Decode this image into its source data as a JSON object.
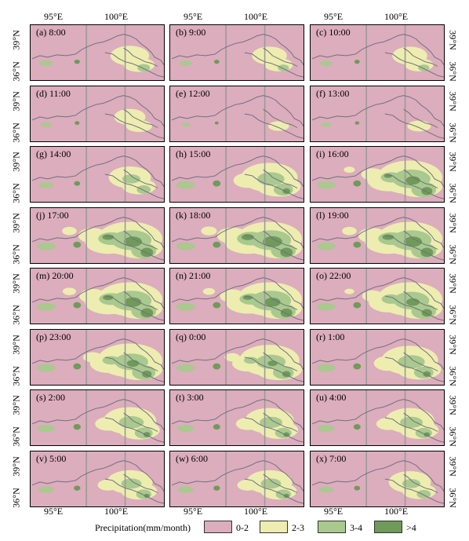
{
  "axes": {
    "top_lon": [
      "95°E",
      "100°E"
    ],
    "bottom_lon": [
      "95°E",
      "100°E"
    ],
    "lat": [
      "39°N",
      "36°N"
    ]
  },
  "panels": [
    {
      "label": "(a) 8:00",
      "intensity": 0.25
    },
    {
      "label": "(b) 9:00",
      "intensity": 0.2
    },
    {
      "label": "(c) 10:00",
      "intensity": 0.2
    },
    {
      "label": "(d) 11:00",
      "intensity": 0.15
    },
    {
      "label": "(e) 12:00",
      "intensity": 0.05
    },
    {
      "label": "(f) 13:00",
      "intensity": 0.1
    },
    {
      "label": "(g) 14:00",
      "intensity": 0.3
    },
    {
      "label": "(h) 15:00",
      "intensity": 0.5
    },
    {
      "label": "(i) 16:00",
      "intensity": 0.75
    },
    {
      "label": "(j) 17:00",
      "intensity": 0.9
    },
    {
      "label": "(k) 18:00",
      "intensity": 0.95
    },
    {
      "label": "(l) 19:00",
      "intensity": 0.9
    },
    {
      "label": "(m) 20:00",
      "intensity": 0.85
    },
    {
      "label": "(n) 21:00",
      "intensity": 0.8
    },
    {
      "label": "(o) 22:00",
      "intensity": 0.7
    },
    {
      "label": "(p) 23:00",
      "intensity": 0.65
    },
    {
      "label": "(q) 0:00",
      "intensity": 0.55
    },
    {
      "label": "(r) 1:00",
      "intensity": 0.5
    },
    {
      "label": "(s) 2:00",
      "intensity": 0.45
    },
    {
      "label": "(t) 3:00",
      "intensity": 0.4
    },
    {
      "label": "(u) 4:00",
      "intensity": 0.4
    },
    {
      "label": "(v) 5:00",
      "intensity": 0.35
    },
    {
      "label": "(w) 6:00",
      "intensity": 0.35
    },
    {
      "label": "(x) 7:00",
      "intensity": 0.3
    }
  ],
  "legend": {
    "title": "Precipitation(mm/month)",
    "items": [
      {
        "label": "0-2",
        "color": "#dcadbc"
      },
      {
        "label": "2-3",
        "color": "#ededb0"
      },
      {
        "label": "3-4",
        "color": "#a9c98e"
      },
      {
        "label": ">4",
        "color": "#6f9a5a"
      }
    ]
  },
  "colors": {
    "background": "#dcadbc",
    "low": "#ededb0",
    "mid": "#a9c98e",
    "high": "#6f9a5a",
    "boundary": "#6f6f80",
    "gridline": "#9a9a9a"
  }
}
